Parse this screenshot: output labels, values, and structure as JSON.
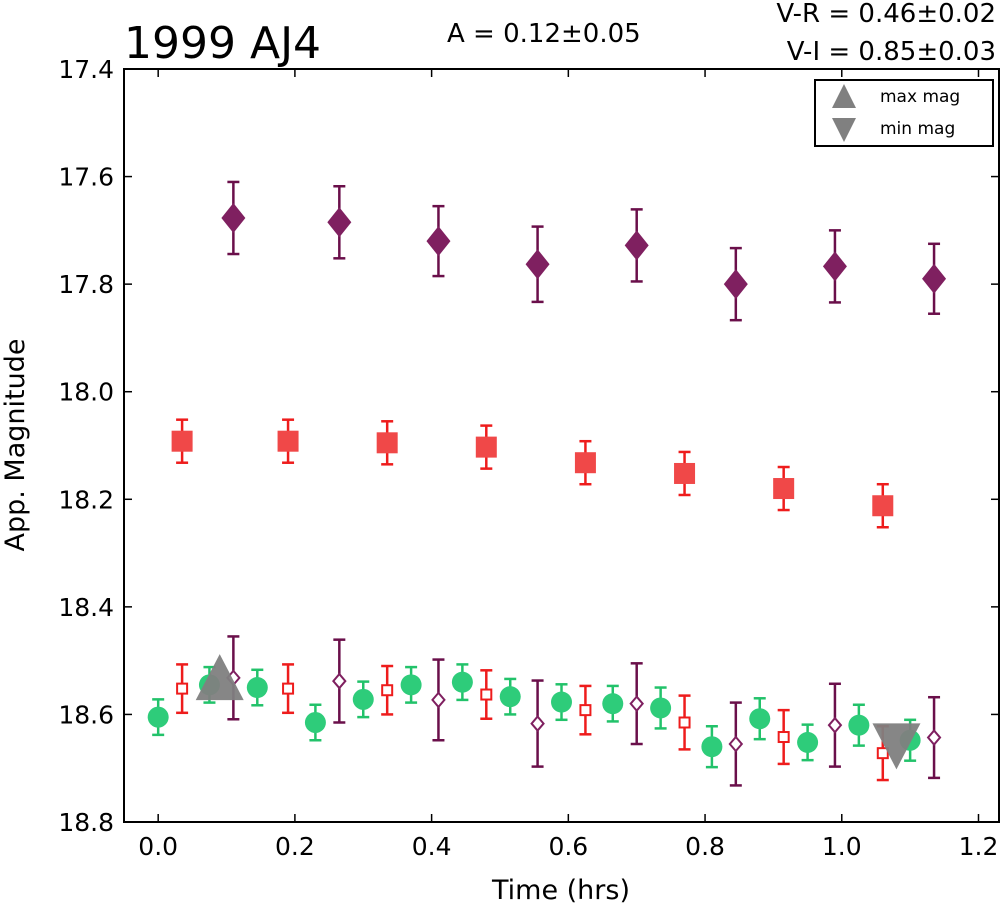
{
  "chart_data": {
    "type": "scatter",
    "title": "1999 AJ4",
    "annotations": {
      "amplitude": "A  = 0.12±0.05",
      "color_vr": "V-R = 0.46±0.02",
      "color_vi": "V-I  = 0.85±0.03"
    },
    "xlabel": "Time (hrs)",
    "ylabel": "App. Magnitude",
    "xlim": [
      -0.05,
      1.23
    ],
    "ylim": [
      18.8,
      17.4
    ],
    "y_inverted": true,
    "xticks": [
      "0.0",
      "0.2",
      "0.4",
      "0.6",
      "0.8",
      "1.0",
      "1.2"
    ],
    "yticks": [
      "17.4",
      "17.6",
      "17.8",
      "18.0",
      "18.2",
      "18.4",
      "18.6",
      "18.8"
    ],
    "grid": false,
    "legend": {
      "placement": "top-right",
      "entries": [
        {
          "label": "max mag",
          "marker": "triangle-up",
          "color": "#808080"
        },
        {
          "label": "min mag",
          "marker": "triangle-down",
          "color": "#808080"
        }
      ]
    },
    "series": [
      {
        "marker": "diamond",
        "filled": true,
        "color": "#7f2060",
        "ecolor": "#6a0f4a",
        "x": [
          0.11,
          0.265,
          0.41,
          0.555,
          0.7,
          0.845,
          0.99,
          1.135
        ],
        "y": [
          17.677,
          17.685,
          17.72,
          17.763,
          17.728,
          17.8,
          17.767,
          17.79
        ],
        "err": [
          0.067,
          0.067,
          0.065,
          0.07,
          0.067,
          0.067,
          0.067,
          0.065
        ]
      },
      {
        "marker": "square",
        "filled": true,
        "color": "#f04848",
        "ecolor": "#ee1c1c",
        "x": [
          0.035,
          0.19,
          0.335,
          0.48,
          0.625,
          0.77,
          0.915,
          1.06
        ],
        "y": [
          18.092,
          18.092,
          18.095,
          18.103,
          18.132,
          18.152,
          18.18,
          18.212
        ],
        "err": [
          0.04,
          0.04,
          0.04,
          0.04,
          0.04,
          0.04,
          0.04,
          0.04
        ]
      },
      {
        "marker": "circle",
        "filled": true,
        "color": "#2ecc7a",
        "ecolor": "#22c26a",
        "x": [
          0.0,
          0.075,
          0.145,
          0.23,
          0.3,
          0.37,
          0.445,
          0.515,
          0.59,
          0.665,
          0.735,
          0.81,
          0.88,
          0.95,
          1.025,
          1.1
        ],
        "y": [
          18.605,
          18.545,
          18.55,
          18.615,
          18.572,
          18.545,
          18.54,
          18.567,
          18.577,
          18.58,
          18.588,
          18.66,
          18.608,
          18.652,
          18.62,
          18.648
        ],
        "err": [
          0.033,
          0.033,
          0.033,
          0.033,
          0.033,
          0.033,
          0.033,
          0.033,
          0.033,
          0.033,
          0.038,
          0.038,
          0.038,
          0.033,
          0.038,
          0.038
        ]
      },
      {
        "marker": "square",
        "filled": false,
        "color": "#ee1c1c",
        "ecolor": "#ee1c1c",
        "x": [
          0.035,
          0.19,
          0.335,
          0.48,
          0.625,
          0.77,
          0.915,
          1.06
        ],
        "y": [
          18.552,
          18.552,
          18.555,
          18.563,
          18.592,
          18.615,
          18.642,
          18.672
        ],
        "err": [
          0.045,
          0.045,
          0.045,
          0.045,
          0.045,
          0.05,
          0.05,
          0.05
        ]
      },
      {
        "marker": "diamond",
        "filled": false,
        "color": "#7f2060",
        "ecolor": "#6a0f4a",
        "x": [
          0.11,
          0.265,
          0.41,
          0.555,
          0.7,
          0.845,
          0.99,
          1.135
        ],
        "y": [
          18.532,
          18.538,
          18.573,
          18.617,
          18.58,
          18.655,
          18.62,
          18.643
        ],
        "err": [
          0.077,
          0.077,
          0.075,
          0.08,
          0.075,
          0.077,
          0.077,
          0.075
        ]
      }
    ],
    "extrema": [
      {
        "label": "max mag",
        "marker": "triangle-up",
        "color": "#808080",
        "x": 0.09,
        "y": 18.54
      },
      {
        "label": "min mag",
        "marker": "triangle-down",
        "color": "#808080",
        "x": 1.08,
        "y": 18.65
      }
    ]
  }
}
